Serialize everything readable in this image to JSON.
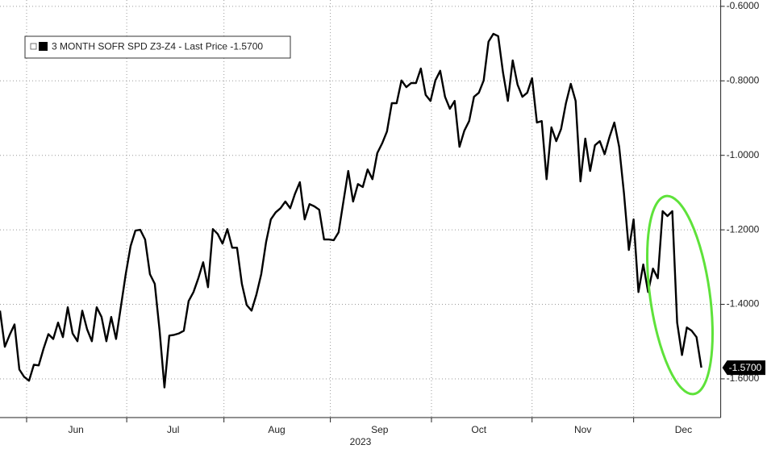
{
  "chart_data": {
    "type": "line",
    "xlabel": "2023",
    "series": [
      {
        "name": "3 MONTH SOFR SPD Z3-Z4 - Last Price -1.5700",
        "color": "#000000",
        "values": [
          -1.417,
          -1.514,
          -1.482,
          -1.454,
          -1.575,
          -1.595,
          -1.605,
          -1.562,
          -1.564,
          -1.519,
          -1.48,
          -1.493,
          -1.449,
          -1.488,
          -1.408,
          -1.478,
          -1.499,
          -1.417,
          -1.467,
          -1.499,
          -1.408,
          -1.434,
          -1.499,
          -1.434,
          -1.493,
          -1.406,
          -1.319,
          -1.244,
          -1.202,
          -1.2,
          -1.226,
          -1.319,
          -1.345,
          -1.471,
          -1.623,
          -1.484,
          -1.482,
          -1.478,
          -1.471,
          -1.391,
          -1.367,
          -1.33,
          -1.287,
          -1.354,
          -1.198,
          -1.211,
          -1.237,
          -1.198,
          -1.248,
          -1.248,
          -1.345,
          -1.402,
          -1.417,
          -1.374,
          -1.319,
          -1.233,
          -1.172,
          -1.153,
          -1.142,
          -1.124,
          -1.142,
          -1.103,
          -1.072,
          -1.172,
          -1.131,
          -1.137,
          -1.146,
          -1.226,
          -1.226,
          -1.228,
          -1.207,
          -1.124,
          -1.042,
          -1.124,
          -1.077,
          -1.085,
          -1.038,
          -1.064,
          -0.994,
          -0.968,
          -0.936,
          -0.86,
          -0.86,
          -0.799,
          -0.817,
          -0.806,
          -0.806,
          -0.767,
          -0.838,
          -0.854,
          -0.799,
          -0.773,
          -0.843,
          -0.875,
          -0.854,
          -0.977,
          -0.934,
          -0.908,
          -0.843,
          -0.832,
          -0.799,
          -0.695,
          -0.674,
          -0.68,
          -0.778,
          -0.854,
          -0.745,
          -0.81,
          -0.843,
          -0.832,
          -0.793,
          -0.912,
          -0.908,
          -1.064,
          -0.925,
          -0.962,
          -0.929,
          -0.86,
          -0.808,
          -0.854,
          -1.07,
          -0.955,
          -1.042,
          -0.973,
          -0.962,
          -0.997,
          -0.951,
          -0.912,
          -0.977,
          -1.103,
          -1.254,
          -1.172,
          -1.367,
          -1.293,
          -1.367,
          -1.304,
          -1.33,
          -1.15,
          -1.163,
          -1.15,
          -1.449,
          -1.536,
          -1.462,
          -1.471,
          -1.488,
          -1.57
        ]
      }
    ],
    "xlim": [
      0,
      149
    ],
    "xticks": [
      5.5,
      26.2,
      46.3,
      68.3,
      89.2,
      110,
      131
    ],
    "month_labels": [
      {
        "value": 15.7,
        "label": "Jun"
      },
      {
        "value": 35.8,
        "label": "Jul"
      },
      {
        "value": 57.2,
        "label": "Aug"
      },
      {
        "value": 78.5,
        "label": "Sep"
      },
      {
        "value": 99,
        "label": "Oct"
      },
      {
        "value": 120.5,
        "label": "Nov"
      },
      {
        "value": 141.3,
        "label": "Dec"
      }
    ],
    "ylim": [
      -1.704,
      -0.583
    ],
    "yticks": [
      {
        "value": -0.6,
        "label": "-0.6000"
      },
      {
        "value": -0.8,
        "label": "-0.8000"
      },
      {
        "value": -1.0,
        "label": "-1.0000"
      },
      {
        "value": -1.2,
        "label": "-1.2000"
      },
      {
        "value": -1.4,
        "label": "-1.4000"
      },
      {
        "value": -1.6,
        "label": "-1.6000"
      }
    ],
    "last_value": {
      "value": -1.57,
      "label": "-1.5700"
    },
    "grid": true
  }
}
